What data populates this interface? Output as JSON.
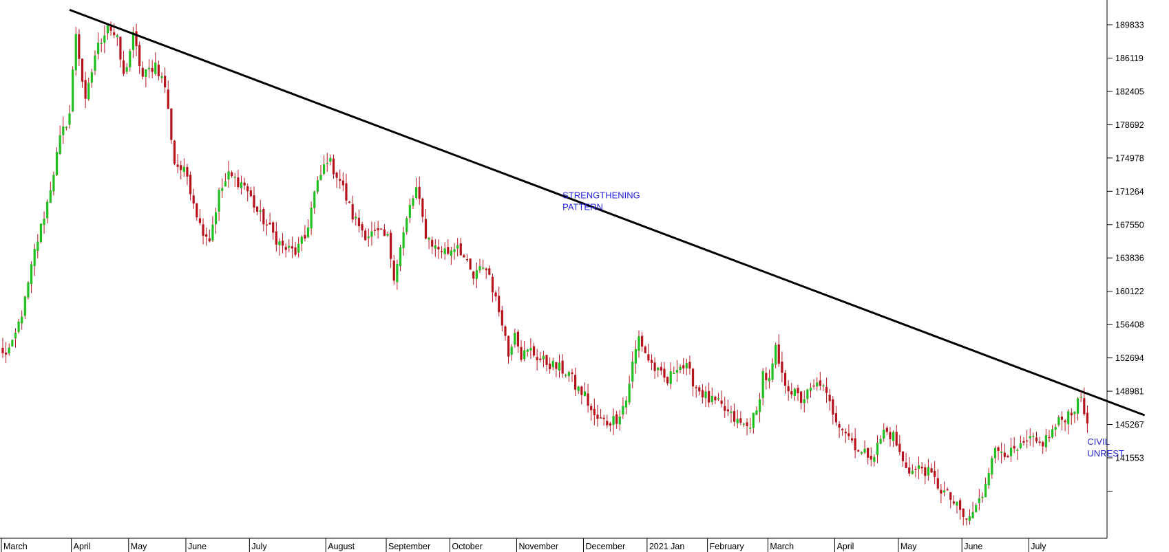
{
  "chart_data": {
    "type": "candlestick",
    "title": "",
    "xlabel": "",
    "ylabel": "",
    "ylim": [
      134000,
      192000
    ],
    "grid": false,
    "legend": "none",
    "colors": {
      "up": "#1fbf1f",
      "down": "#b5121b",
      "trendline": "#000000",
      "annotation": "#2222dd"
    },
    "y_ticks": [
      "189833",
      "186119",
      "182405",
      "178692",
      "174978",
      "171264",
      "167550",
      "163836",
      "160122",
      "156408",
      "152694",
      "148981",
      "145267",
      "141553"
    ],
    "y_tick_values": [
      189833,
      186119,
      182405,
      178692,
      174978,
      171264,
      167550,
      163836,
      160122,
      156408,
      152694,
      148981,
      145267,
      141553
    ],
    "x_ticks": [
      "March",
      "April",
      "May",
      "June",
      "July",
      "August",
      "September",
      "October",
      "November",
      "December",
      "2021 Jan",
      "February",
      "March",
      "April",
      "May",
      "June",
      "July"
    ],
    "x_tick_index": [
      0,
      22,
      40,
      58,
      78,
      102,
      121,
      141,
      162,
      183,
      203,
      222,
      241,
      262,
      282,
      302,
      323
    ],
    "anchors": [
      [
        0,
        153000
      ],
      [
        3,
        154000
      ],
      [
        7,
        159000
      ],
      [
        10,
        164500
      ],
      [
        14,
        170000
      ],
      [
        18,
        177000
      ],
      [
        21,
        180000
      ],
      [
        23,
        189000
      ],
      [
        26,
        181000
      ],
      [
        29,
        186500
      ],
      [
        33,
        190000
      ],
      [
        36,
        188000
      ],
      [
        38,
        184000
      ],
      [
        41,
        188500
      ],
      [
        44,
        184000
      ],
      [
        48,
        185500
      ],
      [
        51,
        183000
      ],
      [
        54,
        174500
      ],
      [
        58,
        173000
      ],
      [
        62,
        167500
      ],
      [
        65,
        166000
      ],
      [
        68,
        171000
      ],
      [
        71,
        173000
      ],
      [
        76,
        172000
      ],
      [
        80,
        169000
      ],
      [
        84,
        167000
      ],
      [
        88,
        165000
      ],
      [
        92,
        164500
      ],
      [
        95,
        166000
      ],
      [
        98,
        171000
      ],
      [
        102,
        175000
      ],
      [
        106,
        172500
      ],
      [
        110,
        168500
      ],
      [
        114,
        166500
      ],
      [
        118,
        166500
      ],
      [
        121,
        166000
      ],
      [
        123,
        162000
      ],
      [
        125,
        165000
      ],
      [
        128,
        169500
      ],
      [
        130,
        171500
      ],
      [
        133,
        166500
      ],
      [
        136,
        165000
      ],
      [
        140,
        164500
      ],
      [
        143,
        165500
      ],
      [
        146,
        163000
      ],
      [
        148,
        161500
      ],
      [
        151,
        163000
      ],
      [
        153,
        162000
      ],
      [
        155,
        159000
      ],
      [
        157,
        157000
      ],
      [
        159,
        153000
      ],
      [
        161,
        156000
      ],
      [
        163,
        153000
      ],
      [
        166,
        153500
      ],
      [
        169,
        152500
      ],
      [
        172,
        152000
      ],
      [
        175,
        151500
      ],
      [
        178,
        151000
      ],
      [
        180,
        149500
      ],
      [
        183,
        148500
      ],
      [
        186,
        146000
      ],
      [
        190,
        145500
      ],
      [
        193,
        146000
      ],
      [
        196,
        148000
      ],
      [
        198,
        152000
      ],
      [
        200,
        155000
      ],
      [
        203,
        152500
      ],
      [
        206,
        151000
      ],
      [
        209,
        150000
      ],
      [
        212,
        152000
      ],
      [
        215,
        151500
      ],
      [
        218,
        149500
      ],
      [
        222,
        148000
      ],
      [
        225,
        147500
      ],
      [
        228,
        146500
      ],
      [
        231,
        145500
      ],
      [
        234,
        145000
      ],
      [
        237,
        146500
      ],
      [
        239,
        151000
      ],
      [
        241,
        150000
      ],
      [
        243,
        153500
      ],
      [
        245,
        150500
      ],
      [
        248,
        149000
      ],
      [
        251,
        148000
      ],
      [
        254,
        149000
      ],
      [
        257,
        150000
      ],
      [
        260,
        147500
      ],
      [
        262,
        146000
      ],
      [
        264,
        145000
      ],
      [
        267,
        143500
      ],
      [
        270,
        142000
      ],
      [
        274,
        142000
      ],
      [
        277,
        144500
      ],
      [
        280,
        144000
      ],
      [
        283,
        141000
      ],
      [
        286,
        140000
      ],
      [
        289,
        140500
      ],
      [
        292,
        139500
      ],
      [
        295,
        138000
      ],
      [
        298,
        137000
      ],
      [
        301,
        135500
      ],
      [
        303,
        134500
      ],
      [
        306,
        136000
      ],
      [
        308,
        137500
      ],
      [
        311,
        142000
      ],
      [
        314,
        142500
      ],
      [
        317,
        142000
      ],
      [
        320,
        142500
      ],
      [
        323,
        143500
      ],
      [
        326,
        143000
      ],
      [
        329,
        144000
      ],
      [
        332,
        145500
      ],
      [
        335,
        146500
      ],
      [
        338,
        147500
      ],
      [
        339,
        148500
      ],
      [
        340,
        146500
      ],
      [
        341,
        146000
      ]
    ],
    "trendline": {
      "start": [
        21,
        191500
      ],
      "end": [
        359,
        146300
      ]
    },
    "annotations": [
      {
        "lines": [
          "STRENGTHENING",
          "PATTERN"
        ],
        "x": 176,
        "y": 170500
      },
      {
        "lines": [
          "CIVIL",
          "UNREST"
        ],
        "x": 341,
        "y": 143000
      }
    ]
  }
}
